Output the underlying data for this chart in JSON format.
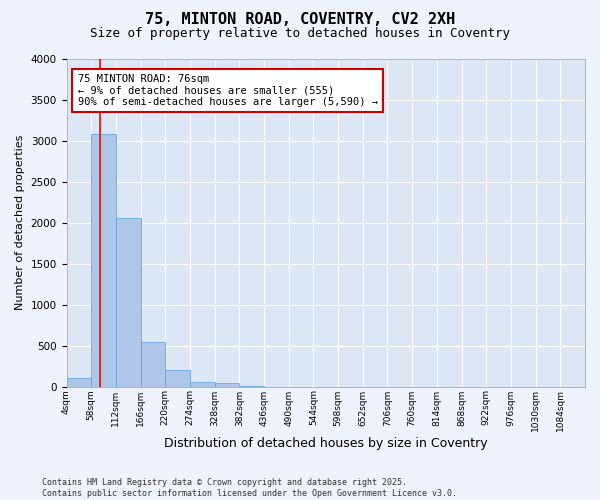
{
  "title_line1": "75, MINTON ROAD, COVENTRY, CV2 2XH",
  "title_line2": "Size of property relative to detached houses in Coventry",
  "xlabel": "Distribution of detached houses by size in Coventry",
  "ylabel": "Number of detached properties",
  "bin_labels": [
    "4sqm",
    "58sqm",
    "112sqm",
    "166sqm",
    "220sqm",
    "274sqm",
    "328sqm",
    "382sqm",
    "436sqm",
    "490sqm",
    "544sqm",
    "598sqm",
    "652sqm",
    "706sqm",
    "760sqm",
    "814sqm",
    "868sqm",
    "922sqm",
    "976sqm",
    "1030sqm",
    "1084sqm"
  ],
  "bar_values": [
    100,
    3080,
    2060,
    550,
    200,
    60,
    40,
    10,
    0,
    0,
    0,
    0,
    0,
    0,
    0,
    0,
    0,
    0,
    0,
    0,
    0
  ],
  "bar_color": "#aec6e8",
  "bar_edge_color": "#5a9fd4",
  "ylim": [
    0,
    4000
  ],
  "yticks": [
    0,
    500,
    1000,
    1500,
    2000,
    2500,
    3000,
    3500,
    4000
  ],
  "property_line_x": 1.35,
  "annotation_title": "75 MINTON ROAD: 76sqm",
  "annotation_line1": "← 9% of detached houses are smaller (555)",
  "annotation_line2": "90% of semi-detached houses are larger (5,590) →",
  "annotation_box_color": "#ffffff",
  "annotation_box_edge_color": "#cc0000",
  "footer_line1": "Contains HM Land Registry data © Crown copyright and database right 2025.",
  "footer_line2": "Contains public sector information licensed under the Open Government Licence v3.0.",
  "bg_color": "#eef2fa",
  "plot_bg_color": "#dce6f5"
}
